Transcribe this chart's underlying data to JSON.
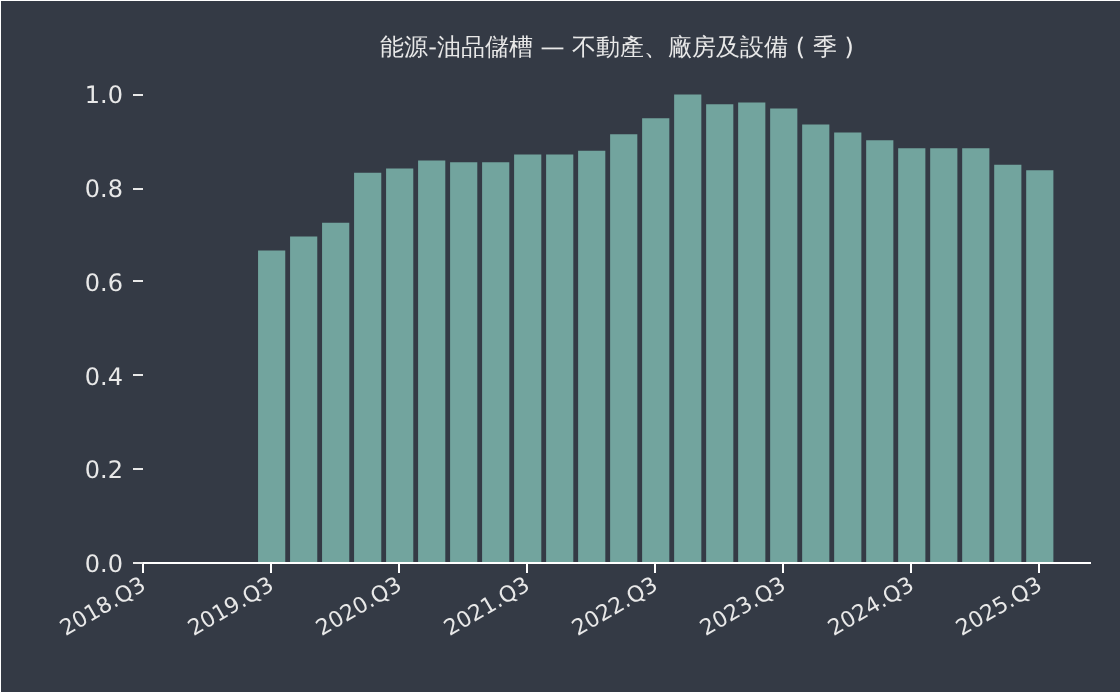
{
  "chart_data": {
    "type": "bar",
    "title": "能源-油品儲槽 — 不動產、廠房及設備 ( 季 )",
    "categories": [
      "2018.Q3",
      null,
      null,
      null,
      "2019.Q3",
      null,
      null,
      null,
      "2020.Q3",
      null,
      null,
      null,
      "2021.Q3",
      null,
      null,
      null,
      "2022.Q3",
      null,
      null,
      null,
      "2023.Q3",
      null,
      null,
      null,
      "2024.Q3",
      null,
      null,
      null,
      "2025.Q3"
    ],
    "values": [
      null,
      null,
      null,
      null,
      0.667,
      0.697,
      0.726,
      0.833,
      0.842,
      0.859,
      0.855,
      0.855,
      0.872,
      0.872,
      0.88,
      0.915,
      0.949,
      1.0,
      0.979,
      0.983,
      0.97,
      0.936,
      0.919,
      0.902,
      0.885,
      0.885,
      0.885,
      0.85,
      0.838
    ],
    "color": "#72a49e",
    "ylim": [
      0,
      1.05
    ],
    "yticks": [
      {
        "value": 0,
        "label": "0.0"
      },
      0.2,
      0.4,
      0.6,
      0.8,
      {
        "value": 1.0,
        "label": "1.0"
      }
    ],
    "grid": false
  }
}
